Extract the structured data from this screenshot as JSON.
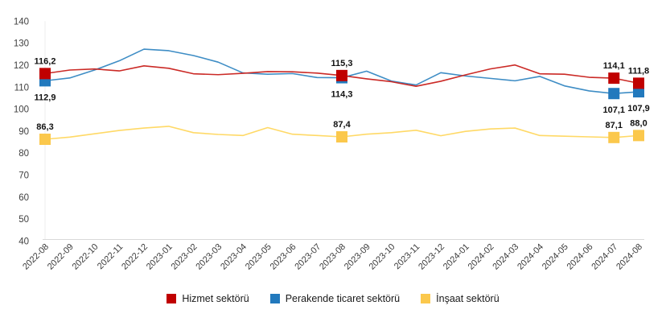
{
  "chart_data": {
    "type": "line",
    "title": "",
    "xlabel": "",
    "ylabel": "",
    "ylim": [
      40,
      140
    ],
    "yticks": [
      40,
      50,
      60,
      70,
      80,
      90,
      100,
      110,
      120,
      130,
      140
    ],
    "grid": "off",
    "legend_position": "bottom-center",
    "decimal_separator": "comma",
    "categories": [
      "2022-08",
      "2022-09",
      "2022-10",
      "2022-11",
      "2022-12",
      "2023-01",
      "2023-02",
      "2023-03",
      "2023-04",
      "2023-05",
      "2023-06",
      "2023-07",
      "2023-08",
      "2023-09",
      "2023-10",
      "2023-11",
      "2023-12",
      "2024-01",
      "2024-02",
      "2024-03",
      "2024-04",
      "2024-05",
      "2024-06",
      "2024-07",
      "2024-08"
    ],
    "highlighted_categories": [
      "2022-08",
      "2023-08",
      "2024-07",
      "2024-08"
    ],
    "series": [
      {
        "name": "Hizmet sektörü",
        "line_color": "#cb2a26",
        "marker_color": "#c00000",
        "values": [
          116.2,
          117.8,
          118.3,
          117.4,
          119.7,
          118.6,
          116.1,
          115.7,
          116.3,
          117.1,
          117.0,
          116.4,
          115.3,
          113.8,
          112.5,
          110.4,
          112.7,
          115.6,
          118.3,
          120.1,
          116.1,
          115.9,
          114.5,
          114.1,
          111.8
        ],
        "point_labels": [
          {
            "index": 0,
            "text": "116,2",
            "position": "above"
          },
          {
            "index": 12,
            "text": "115,3",
            "position": "above"
          },
          {
            "index": 23,
            "text": "114,1",
            "position": "above"
          },
          {
            "index": 24,
            "text": "111,8",
            "position": "above"
          }
        ]
      },
      {
        "name": "Perakende ticaret sektörü",
        "line_color": "#3e8dc5",
        "marker_color": "#2279bd",
        "values": [
          112.9,
          114.2,
          117.8,
          122.0,
          127.3,
          126.6,
          124.4,
          121.4,
          116.5,
          115.9,
          116.2,
          114.4,
          114.3,
          117.3,
          112.8,
          111.0,
          116.6,
          115.1,
          114.0,
          112.9,
          114.9,
          110.6,
          108.3,
          107.1,
          107.9
        ],
        "point_labels": [
          {
            "index": 0,
            "text": "112,9",
            "position": "below"
          },
          {
            "index": 12,
            "text": "114,3",
            "position": "below"
          },
          {
            "index": 23,
            "text": "107,1",
            "position": "below"
          },
          {
            "index": 24,
            "text": "107,9",
            "position": "below"
          }
        ]
      },
      {
        "name": "İnşaat sektörü",
        "line_color": "#ffd966",
        "marker_color": "#fbc84c",
        "values": [
          86.3,
          87.3,
          88.8,
          90.3,
          91.4,
          92.2,
          89.3,
          88.5,
          88.0,
          91.6,
          88.6,
          88.0,
          87.4,
          88.6,
          89.3,
          90.4,
          87.9,
          89.9,
          91.0,
          91.4,
          88.0,
          87.7,
          87.4,
          87.1,
          88.0
        ],
        "point_labels": [
          {
            "index": 0,
            "text": "86,3",
            "position": "above"
          },
          {
            "index": 12,
            "text": "87,4",
            "position": "above"
          },
          {
            "index": 23,
            "text": "87,1",
            "position": "above"
          },
          {
            "index": 24,
            "text": "88,0",
            "position": "above"
          }
        ]
      }
    ]
  },
  "legend": {
    "items": [
      {
        "label": "Hizmet sektörü",
        "color": "#c00000"
      },
      {
        "label": "Perakende ticaret sektörü",
        "color": "#2279bd"
      },
      {
        "label": "İnşaat sektörü",
        "color": "#fbc84c"
      }
    ]
  }
}
